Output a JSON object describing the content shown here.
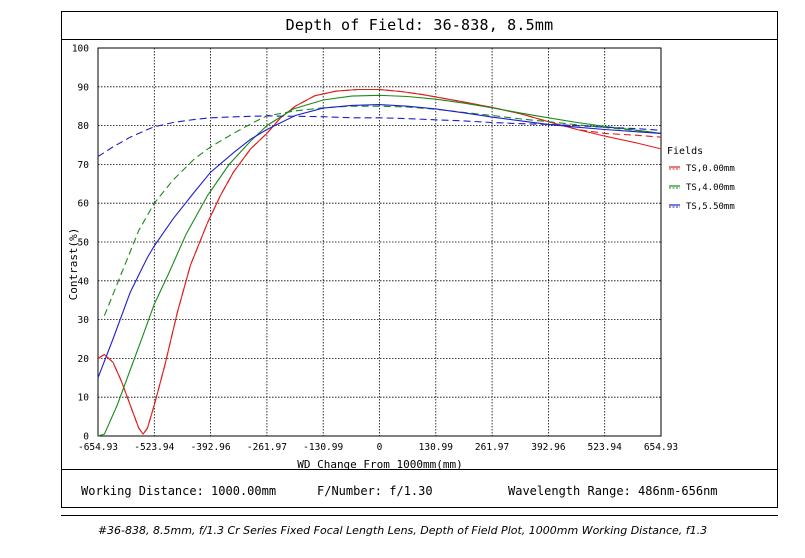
{
  "chart_data": {
    "type": "line",
    "title": "Depth of Field: 36-838, 8.5mm",
    "xlabel": "WD Change From 1000mm(mm)",
    "ylabel": "Contrast(%)",
    "xlim": [
      -654.93,
      654.93
    ],
    "ylim": [
      0,
      100
    ],
    "grid": true,
    "x_ticks": [
      "-654.93",
      "-523.94",
      "-392.96",
      "-261.97",
      "-130.99",
      "0",
      "130.99",
      "261.97",
      "392.96",
      "523.94",
      "654.93"
    ],
    "y_ticks": [
      "0",
      "10",
      "20",
      "30",
      "40",
      "50",
      "60",
      "70",
      "80",
      "90",
      "100"
    ],
    "legend_title": "Fields",
    "legend_position": "right",
    "series": [
      {
        "name": "TS,0.00mm",
        "color": "#e02020",
        "style": "solid",
        "points": [
          [
            -654.93,
            20
          ],
          [
            -640,
            21
          ],
          [
            -620,
            19
          ],
          [
            -600,
            14
          ],
          [
            -580,
            8
          ],
          [
            -560,
            2
          ],
          [
            -550,
            0.5
          ],
          [
            -540,
            2
          ],
          [
            -523.94,
            8
          ],
          [
            -500,
            18
          ],
          [
            -470,
            32
          ],
          [
            -440,
            44
          ],
          [
            -400,
            55
          ],
          [
            -370,
            62
          ],
          [
            -340,
            68
          ],
          [
            -300,
            74
          ],
          [
            -261.97,
            78
          ],
          [
            -230,
            82
          ],
          [
            -196,
            85
          ],
          [
            -150,
            87.7
          ],
          [
            -100,
            88.9
          ],
          [
            -50,
            89.3
          ],
          [
            0,
            89.3
          ],
          [
            50,
            88.8
          ],
          [
            100,
            88
          ],
          [
            150,
            87
          ],
          [
            200,
            86
          ],
          [
            261.97,
            84.7
          ],
          [
            330,
            83
          ],
          [
            392.96,
            81
          ],
          [
            460,
            79
          ],
          [
            523.94,
            77.3
          ],
          [
            600,
            75.5
          ],
          [
            654.93,
            74
          ]
        ]
      },
      {
        "name": "TS,0.00mm",
        "color": "#e02020",
        "style": "dashed",
        "points": [
          [
            -654.93,
            20
          ],
          [
            -640,
            21
          ],
          [
            -620,
            19
          ],
          [
            -600,
            14
          ],
          [
            -580,
            8
          ],
          [
            -560,
            2
          ],
          [
            -550,
            0.5
          ],
          [
            -540,
            2
          ],
          [
            -523.94,
            8
          ],
          [
            -500,
            18
          ],
          [
            -470,
            32
          ],
          [
            -440,
            44
          ],
          [
            -400,
            55
          ],
          [
            -370,
            62
          ],
          [
            -340,
            68
          ],
          [
            -300,
            74
          ],
          [
            -261.97,
            78
          ],
          [
            -230,
            82
          ],
          [
            -196,
            85
          ],
          [
            -150,
            87.7
          ],
          [
            -100,
            88.9
          ],
          [
            -50,
            89.3
          ],
          [
            0,
            89.3
          ],
          [
            50,
            88.8
          ],
          [
            100,
            88
          ],
          [
            150,
            87
          ],
          [
            200,
            86
          ],
          [
            261.97,
            84.7
          ],
          [
            330,
            83
          ],
          [
            392.96,
            81
          ],
          [
            460,
            79
          ],
          [
            523.94,
            78
          ],
          [
            600,
            77.5
          ],
          [
            654.93,
            77
          ]
        ]
      },
      {
        "name": "TS,4.00mm",
        "color": "#1a8a1a",
        "style": "solid",
        "points": [
          [
            -654.93,
            0
          ],
          [
            -640,
            0.5
          ],
          [
            -610,
            8
          ],
          [
            -580,
            17
          ],
          [
            -550,
            26
          ],
          [
            -523.94,
            34
          ],
          [
            -490,
            42
          ],
          [
            -450,
            52
          ],
          [
            -400,
            62
          ],
          [
            -350,
            70
          ],
          [
            -300,
            76
          ],
          [
            -261.97,
            80
          ],
          [
            -200,
            84.3
          ],
          [
            -130.99,
            86.6
          ],
          [
            -65,
            87.6
          ],
          [
            0,
            87.8
          ],
          [
            65,
            87.5
          ],
          [
            130.99,
            86.8
          ],
          [
            196,
            85.8
          ],
          [
            261.97,
            84.6
          ],
          [
            330,
            83.2
          ],
          [
            392.96,
            82
          ],
          [
            460,
            80.8
          ],
          [
            523.94,
            79.8
          ],
          [
            600,
            78.8
          ],
          [
            654.93,
            78
          ]
        ]
      },
      {
        "name": "TS,4.00mm",
        "color": "#1a8a1a",
        "style": "dashed",
        "points": [
          [
            -640,
            31
          ],
          [
            -600,
            42
          ],
          [
            -560,
            53
          ],
          [
            -523.94,
            60
          ],
          [
            -480,
            66
          ],
          [
            -430,
            71.5
          ],
          [
            -392.96,
            74.5
          ],
          [
            -340,
            78
          ],
          [
            -290,
            81
          ],
          [
            -261.97,
            82.5
          ],
          [
            -196,
            83.8
          ],
          [
            -130.99,
            84.6
          ],
          [
            -65,
            85
          ],
          [
            0,
            85
          ],
          [
            65,
            84.8
          ],
          [
            130.99,
            84.2
          ],
          [
            196,
            83.4
          ],
          [
            261.97,
            82.6
          ],
          [
            330,
            81.7
          ],
          [
            392.96,
            81
          ],
          [
            460,
            80.2
          ],
          [
            523.94,
            79.5
          ],
          [
            600,
            78.7
          ],
          [
            654.93,
            78
          ]
        ]
      },
      {
        "name": "TS,5.50mm",
        "color": "#1f1fcc",
        "style": "solid",
        "points": [
          [
            -654.93,
            15
          ],
          [
            -620,
            25
          ],
          [
            -580,
            37
          ],
          [
            -540,
            46
          ],
          [
            -523.94,
            49
          ],
          [
            -480,
            56
          ],
          [
            -430,
            63
          ],
          [
            -392.96,
            68
          ],
          [
            -340,
            73
          ],
          [
            -300,
            76.5
          ],
          [
            -261.97,
            79
          ],
          [
            -196,
            82.6
          ],
          [
            -130.99,
            84.5
          ],
          [
            -65,
            85.2
          ],
          [
            0,
            85.4
          ],
          [
            65,
            85
          ],
          [
            130.99,
            84.3
          ],
          [
            196,
            83.3
          ],
          [
            261.97,
            82.2
          ],
          [
            330,
            81.2
          ],
          [
            392.96,
            80.3
          ],
          [
            460,
            79.6
          ],
          [
            523.94,
            79
          ],
          [
            600,
            78.4
          ],
          [
            654.93,
            78
          ]
        ]
      },
      {
        "name": "TS,5.50mm",
        "color": "#1f1fcc",
        "style": "dashed",
        "points": [
          [
            -654.93,
            72
          ],
          [
            -620,
            74.5
          ],
          [
            -580,
            77
          ],
          [
            -540,
            79
          ],
          [
            -523.94,
            79.7
          ],
          [
            -480,
            80.8
          ],
          [
            -430,
            81.6
          ],
          [
            -392.96,
            82
          ],
          [
            -330,
            82.3
          ],
          [
            -261.97,
            82.5
          ],
          [
            -196,
            82.4
          ],
          [
            -130.99,
            82.3
          ],
          [
            -65,
            82
          ],
          [
            0,
            82
          ],
          [
            65,
            81.8
          ],
          [
            130.99,
            81.5
          ],
          [
            196,
            81.2
          ],
          [
            261.97,
            80.8
          ],
          [
            330,
            80.5
          ],
          [
            392.96,
            80.3
          ],
          [
            460,
            80
          ],
          [
            523.94,
            79.6
          ],
          [
            600,
            79.2
          ],
          [
            654.93,
            78.8
          ]
        ]
      }
    ]
  },
  "legend_entries": [
    {
      "label": "TS,0.00mm",
      "color": "#e02020"
    },
    {
      "label": "TS,4.00mm",
      "color": "#1a8a1a"
    },
    {
      "label": "TS,5.50mm",
      "color": "#1f1fcc"
    }
  ],
  "info": {
    "working_distance": "Working Distance: 1000.00mm",
    "f_number": "F/Number: f/1.30",
    "wavelength": "Wavelength Range: 486nm-656nm"
  },
  "caption": "#36-838, 8.5mm, f/1.3 Cr Series Fixed Focal Length Lens, Depth of Field Plot, 1000mm Working Distance, f1.3"
}
